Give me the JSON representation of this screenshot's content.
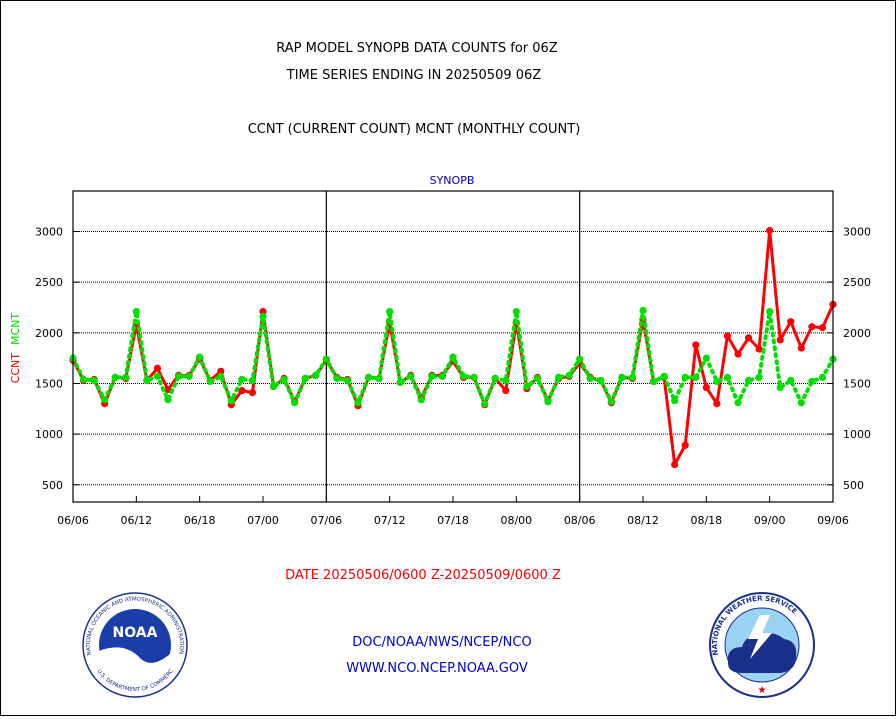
{
  "header": {
    "title_line1": "RAP MODEL SYNOPB DATA COUNTS for 06Z",
    "title_line2": "TIME SERIES ENDING IN 20250509 06Z",
    "count_line": "CCNT (CURRENT COUNT) MCNT (MONTHLY COUNT)"
  },
  "footer": {
    "date_range": "DATE 20250506/0600 Z-20250509/0600 Z",
    "org": "DOC/NOAA/NWS/NCEP/NCO",
    "url": "WWW.NCO.NCEP.NOAA.GOV"
  },
  "logos": {
    "noaa_text": "NOAA",
    "noaa_ring_text": "NATIONAL OCEANIC AND ATMOSPHERIC ADMINISTRATION",
    "noaa_bottom_text": "U.S. DEPARTMENT OF COMMERCE",
    "nws_ring_text": "NATIONAL WEATHER SERVICE"
  },
  "colors": {
    "ccnt": "#ff0000",
    "mcnt": "#00e000",
    "text": "#000000",
    "plot_title": "#0000cc",
    "footer_date": "#ff0000",
    "footer_link": "#0000cc"
  },
  "chart_data": {
    "type": "line",
    "title": "SYNOPB",
    "ylabel_ccnt": "CCNT",
    "ylabel_mcnt": "MCNT",
    "ylim": [
      330,
      3400
    ],
    "yticks": [
      500,
      1000,
      1500,
      2000,
      2500,
      3000
    ],
    "xticks": [
      "06/06",
      "06/12",
      "06/18",
      "07/00",
      "07/06",
      "07/12",
      "07/18",
      "08/00",
      "08/06",
      "08/12",
      "08/18",
      "09/00",
      "09/06"
    ],
    "day_boundaries": [
      "07/06",
      "08/06"
    ],
    "grid": true,
    "x_step_hours": 1,
    "series": [
      {
        "name": "CCNT",
        "color": "#ff0000",
        "style": "solid",
        "values": [
          1730,
          1530,
          1540,
          1300,
          1560,
          1550,
          2080,
          1530,
          1650,
          1440,
          1580,
          1580,
          1740,
          1530,
          1620,
          1290,
          1430,
          1410,
          2210,
          1470,
          1550,
          1320,
          1550,
          1580,
          1730,
          1560,
          1540,
          1280,
          1560,
          1550,
          2100,
          1510,
          1580,
          1360,
          1580,
          1580,
          1720,
          1560,
          1560,
          1290,
          1550,
          1430,
          2100,
          1450,
          1560,
          1330,
          1550,
          1570,
          1700,
          1560,
          1530,
          1310,
          1560,
          1550,
          2130,
          1520,
          1560,
          700,
          890,
          1880,
          1460,
          1300,
          1970,
          1790,
          1950,
          1840,
          3010,
          1930,
          2110,
          1850,
          2060,
          2050,
          2280
        ]
      },
      {
        "name": "MCNT",
        "color": "#00e000",
        "style": "dotted",
        "values": [
          1750,
          1540,
          1530,
          1340,
          1560,
          1560,
          2210,
          1530,
          1570,
          1340,
          1570,
          1570,
          1760,
          1520,
          1570,
          1330,
          1540,
          1530,
          2160,
          1470,
          1540,
          1310,
          1550,
          1580,
          1740,
          1550,
          1530,
          1310,
          1560,
          1550,
          2210,
          1510,
          1570,
          1340,
          1570,
          1570,
          1760,
          1570,
          1560,
          1300,
          1550,
          1530,
          2210,
          1470,
          1550,
          1320,
          1560,
          1580,
          1740,
          1550,
          1530,
          1320,
          1560,
          1560,
          2220,
          1520,
          1570,
          1330,
          1560,
          1560,
          1750,
          1520,
          1560,
          1310,
          1530,
          1560,
          2210,
          1460,
          1530,
          1310,
          1520,
          1560,
          1740
        ]
      }
    ]
  }
}
